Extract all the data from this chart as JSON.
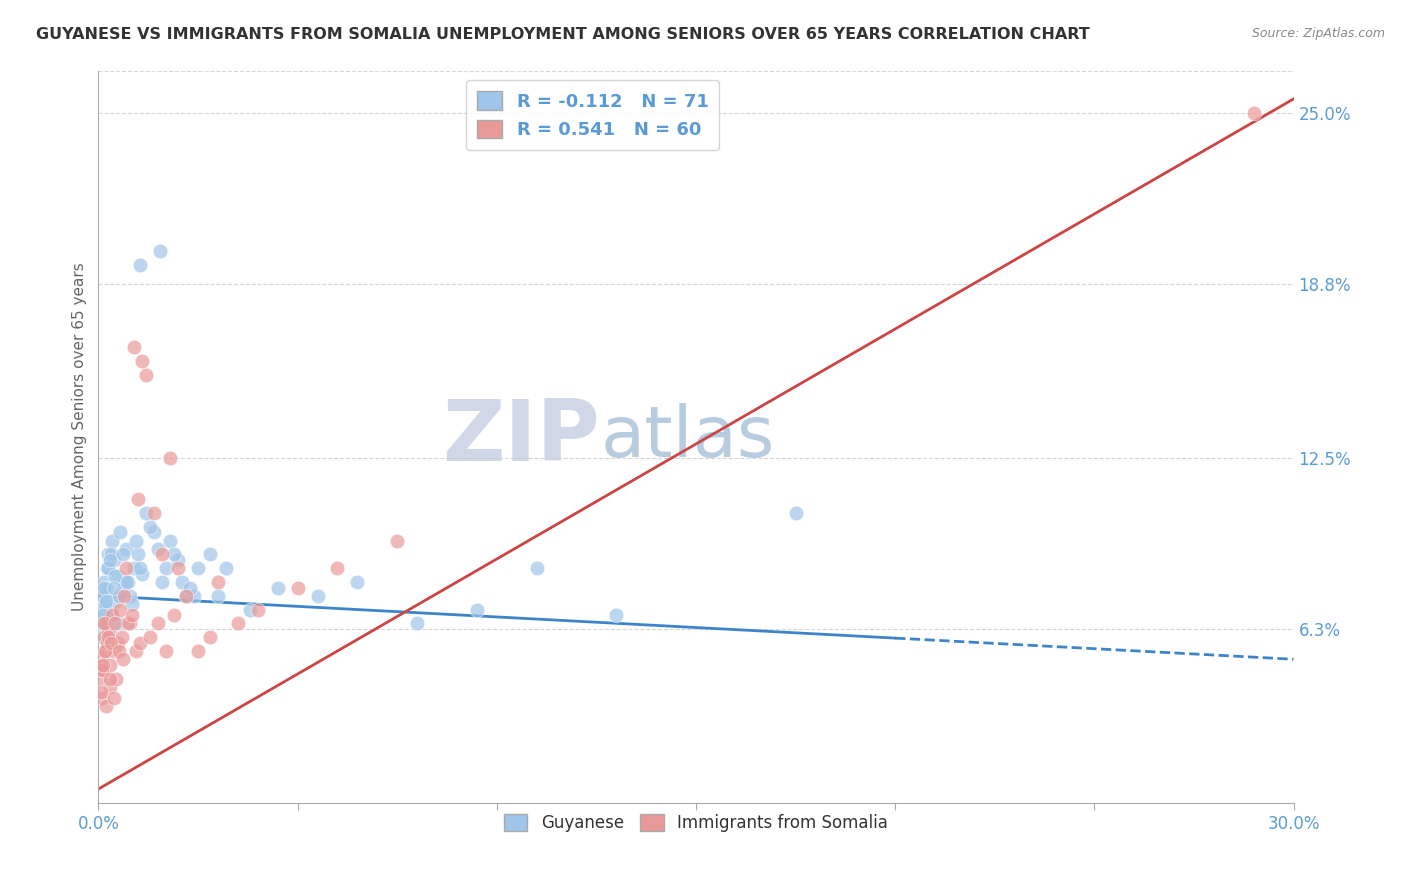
{
  "title": "GUYANESE VS IMMIGRANTS FROM SOMALIA UNEMPLOYMENT AMONG SENIORS OVER 65 YEARS CORRELATION CHART",
  "source": "Source: ZipAtlas.com",
  "ylabel": "Unemployment Among Seniors over 65 years",
  "xlim": [
    0.0,
    30.0
  ],
  "ylim": [
    0.0,
    26.5
  ],
  "yticks": [
    6.3,
    12.5,
    18.8,
    25.0
  ],
  "xticks": [
    0.0,
    5.0,
    10.0,
    15.0,
    20.0,
    25.0,
    30.0
  ],
  "blue_color": "#9fc5e8",
  "pink_color": "#ea9999",
  "blue_line_color": "#3d85c8",
  "pink_line_color": "#cc4444",
  "R_blue": -0.112,
  "N_blue": 71,
  "R_pink": 0.541,
  "N_pink": 60,
  "legend_label_blue": "Guyanese",
  "legend_label_pink": "Immigrants from Somalia",
  "watermark_ZIP": "ZIP",
  "watermark_atlas": "atlas",
  "watermark_color_ZIP": "#d0d8e8",
  "watermark_color_atlas": "#b8ccdf",
  "background_color": "#ffffff",
  "grid_color": "#cccccc",
  "title_color": "#333333",
  "axis_label_color": "#5b9bd5",
  "blue_scatter_x": [
    0.05,
    0.08,
    0.1,
    0.12,
    0.15,
    0.18,
    0.2,
    0.22,
    0.25,
    0.28,
    0.3,
    0.35,
    0.4,
    0.45,
    0.5,
    0.55,
    0.6,
    0.65,
    0.7,
    0.8,
    0.9,
    1.0,
    1.1,
    1.2,
    1.4,
    1.6,
    1.8,
    2.0,
    2.2,
    2.5,
    0.06,
    0.09,
    0.13,
    0.17,
    0.23,
    0.32,
    0.42,
    0.52,
    0.62,
    0.75,
    0.85,
    0.95,
    1.05,
    1.3,
    1.5,
    1.7,
    1.9,
    2.1,
    2.4,
    2.8,
    3.2,
    3.8,
    4.5,
    5.5,
    6.5,
    8.0,
    9.5,
    11.0,
    13.0,
    17.5,
    0.07,
    0.11,
    0.19,
    0.28,
    0.38,
    0.48,
    0.72,
    1.05,
    1.55,
    2.3,
    3.0
  ],
  "blue_scatter_y": [
    6.5,
    6.8,
    7.2,
    7.5,
    8.0,
    6.3,
    7.8,
    8.5,
    9.0,
    7.0,
    6.2,
    9.5,
    8.8,
    7.3,
    8.2,
    9.8,
    7.6,
    8.0,
    9.2,
    7.5,
    8.5,
    9.0,
    8.3,
    10.5,
    9.8,
    8.0,
    9.5,
    8.8,
    7.5,
    8.5,
    7.0,
    6.5,
    7.8,
    7.2,
    8.5,
    9.0,
    8.2,
    7.5,
    9.0,
    8.0,
    7.2,
    9.5,
    8.5,
    10.0,
    9.2,
    8.5,
    9.0,
    8.0,
    7.5,
    9.0,
    8.5,
    7.0,
    7.8,
    7.5,
    8.0,
    6.5,
    7.0,
    8.5,
    6.8,
    10.5,
    6.0,
    6.8,
    7.3,
    8.8,
    7.8,
    6.5,
    8.0,
    19.5,
    20.0,
    7.8,
    7.5
  ],
  "pink_scatter_x": [
    0.05,
    0.08,
    0.1,
    0.12,
    0.15,
    0.18,
    0.2,
    0.22,
    0.25,
    0.28,
    0.3,
    0.35,
    0.4,
    0.45,
    0.5,
    0.55,
    0.6,
    0.65,
    0.7,
    0.8,
    0.9,
    1.0,
    1.1,
    1.2,
    1.4,
    1.6,
    1.8,
    2.0,
    2.5,
    3.0,
    0.06,
    0.09,
    0.13,
    0.17,
    0.23,
    0.32,
    0.42,
    0.52,
    0.62,
    0.75,
    0.85,
    0.95,
    1.05,
    1.3,
    1.5,
    1.7,
    1.9,
    2.2,
    2.8,
    3.5,
    4.0,
    5.0,
    6.0,
    7.5,
    0.07,
    0.11,
    0.19,
    0.29,
    0.38,
    29.0
  ],
  "pink_scatter_y": [
    4.5,
    3.8,
    5.2,
    4.8,
    6.0,
    5.5,
    6.5,
    5.8,
    6.2,
    5.0,
    4.2,
    6.8,
    5.5,
    4.5,
    5.8,
    7.0,
    6.0,
    7.5,
    8.5,
    6.5,
    16.5,
    11.0,
    16.0,
    15.5,
    10.5,
    9.0,
    12.5,
    8.5,
    5.5,
    8.0,
    5.0,
    4.8,
    6.5,
    5.5,
    6.0,
    5.8,
    6.5,
    5.5,
    5.2,
    6.5,
    6.8,
    5.5,
    5.8,
    6.0,
    6.5,
    5.5,
    6.8,
    7.5,
    6.0,
    6.5,
    7.0,
    7.8,
    8.5,
    9.5,
    4.0,
    5.0,
    3.5,
    4.5,
    3.8,
    25.0
  ],
  "blue_trend_x": [
    0.0,
    30.0
  ],
  "blue_trend_y": [
    7.5,
    5.2
  ],
  "blue_dash_start_x": 20.0,
  "pink_trend_x": [
    0.0,
    30.0
  ],
  "pink_trend_y": [
    0.5,
    25.5
  ]
}
